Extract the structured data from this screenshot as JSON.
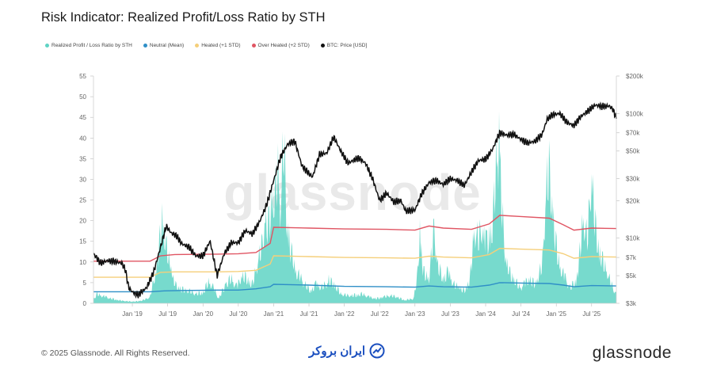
{
  "title": "Risk Indicator: Realized Profit/Loss Ratio by STH",
  "legend": [
    {
      "label": "Realized Profit / Loss Ratio by STH",
      "color": "#5fd3c4"
    },
    {
      "label": "Neutral (Mean)",
      "color": "#2f8fc7"
    },
    {
      "label": "Heated (+1 STD)",
      "color": "#f5cf7a"
    },
    {
      "label": "Over Heated (+2 STD)",
      "color": "#e05563"
    },
    {
      "label": "BTC: Price [USD]",
      "color": "#111111"
    }
  ],
  "watermark": "glassnode",
  "footer": {
    "copyright": "© 2025 Glassnode. All Rights Reserved.",
    "partner_brand": "ایران بروکر",
    "brand": "glassnode"
  },
  "chart_data": {
    "type": "line",
    "title": "Risk Indicator: Realized Profit/Loss Ratio by STH",
    "x_tick_labels": [
      "Jan '19",
      "Jul '19",
      "Jan '20",
      "Jul '20",
      "Jan '21",
      "Jul '21",
      "Jan '22",
      "Jul '22",
      "Jan '23",
      "Jul '23",
      "Jan '24",
      "Jul '24",
      "Jan '25",
      "Jul '25"
    ],
    "y_left": {
      "ticks": [
        0,
        5,
        10,
        15,
        20,
        25,
        30,
        35,
        40,
        45,
        50,
        55
      ],
      "range": [
        0,
        55
      ]
    },
    "y_right": {
      "ticks": [
        "$3k",
        "$5k",
        "$7k",
        "$10k",
        "$20k",
        "$30k",
        "$50k",
        "$70k",
        "$100k",
        "$200k"
      ],
      "values": [
        3000,
        5000,
        7000,
        10000,
        20000,
        30000,
        50000,
        70000,
        100000,
        200000
      ],
      "scale": "log",
      "range": [
        3000,
        200000
      ]
    },
    "x_range": [
      2018.45,
      2025.85
    ],
    "series": [
      {
        "name": "BTC: Price [USD]",
        "axis": "right",
        "points": [
          [
            2018.45,
            7500
          ],
          [
            2018.55,
            6300
          ],
          [
            2018.65,
            6600
          ],
          [
            2018.75,
            6500
          ],
          [
            2018.85,
            6300
          ],
          [
            2018.9,
            5600
          ],
          [
            2018.95,
            4000
          ],
          [
            2019.0,
            3700
          ],
          [
            2019.08,
            3500
          ],
          [
            2019.2,
            4000
          ],
          [
            2019.3,
            5300
          ],
          [
            2019.4,
            8500
          ],
          [
            2019.48,
            12500
          ],
          [
            2019.55,
            11000
          ],
          [
            2019.62,
            10500
          ],
          [
            2019.7,
            9000
          ],
          [
            2019.8,
            8500
          ],
          [
            2019.9,
            7200
          ],
          [
            2020.0,
            7200
          ],
          [
            2020.1,
            9500
          ],
          [
            2020.2,
            5000
          ],
          [
            2020.3,
            7500
          ],
          [
            2020.4,
            9200
          ],
          [
            2020.5,
            9200
          ],
          [
            2020.6,
            11500
          ],
          [
            2020.7,
            10800
          ],
          [
            2020.8,
            13500
          ],
          [
            2020.9,
            18500
          ],
          [
            2021.0,
            29000
          ],
          [
            2021.1,
            45000
          ],
          [
            2021.2,
            57000
          ],
          [
            2021.3,
            60000
          ],
          [
            2021.4,
            38000
          ],
          [
            2021.5,
            33000
          ],
          [
            2021.55,
            31000
          ],
          [
            2021.65,
            47000
          ],
          [
            2021.75,
            48000
          ],
          [
            2021.85,
            65000
          ],
          [
            2021.95,
            50000
          ],
          [
            2022.05,
            40000
          ],
          [
            2022.2,
            44000
          ],
          [
            2022.3,
            40000
          ],
          [
            2022.4,
            30000
          ],
          [
            2022.5,
            20000
          ],
          [
            2022.6,
            23000
          ],
          [
            2022.7,
            19500
          ],
          [
            2022.8,
            20000
          ],
          [
            2022.87,
            16500
          ],
          [
            2023.0,
            16800
          ],
          [
            2023.1,
            23000
          ],
          [
            2023.2,
            28000
          ],
          [
            2023.3,
            29000
          ],
          [
            2023.4,
            27000
          ],
          [
            2023.5,
            30000
          ],
          [
            2023.6,
            29000
          ],
          [
            2023.7,
            26500
          ],
          [
            2023.8,
            34000
          ],
          [
            2023.9,
            42000
          ],
          [
            2024.0,
            43000
          ],
          [
            2024.1,
            52000
          ],
          [
            2024.2,
            70000
          ],
          [
            2024.3,
            67000
          ],
          [
            2024.4,
            68000
          ],
          [
            2024.5,
            62000
          ],
          [
            2024.6,
            58000
          ],
          [
            2024.7,
            60000
          ],
          [
            2024.8,
            68000
          ],
          [
            2024.87,
            90000
          ],
          [
            2024.95,
            98000
          ],
          [
            2025.05,
            100000
          ],
          [
            2025.15,
            85000
          ],
          [
            2025.25,
            80000
          ],
          [
            2025.35,
            95000
          ],
          [
            2025.45,
            105000
          ],
          [
            2025.55,
            117000
          ],
          [
            2025.65,
            114000
          ],
          [
            2025.75,
            115000
          ],
          [
            2025.8,
            108000
          ],
          [
            2025.85,
            92000
          ]
        ]
      },
      {
        "name": "Over Heated (+2 STD)",
        "axis": "left",
        "points": [
          [
            2018.45,
            10.2
          ],
          [
            2019.25,
            10.2
          ],
          [
            2019.4,
            11.5
          ],
          [
            2019.6,
            11.8
          ],
          [
            2020.2,
            11.9
          ],
          [
            2020.5,
            12.0
          ],
          [
            2020.75,
            12.3
          ],
          [
            2020.95,
            14.5
          ],
          [
            2021.0,
            18.4
          ],
          [
            2021.5,
            18.2
          ],
          [
            2022.0,
            18.0
          ],
          [
            2022.6,
            17.9
          ],
          [
            2023.0,
            17.7
          ],
          [
            2023.2,
            18.7
          ],
          [
            2023.4,
            18.2
          ],
          [
            2023.8,
            17.9
          ],
          [
            2024.05,
            19.2
          ],
          [
            2024.2,
            21.3
          ],
          [
            2024.5,
            21.0
          ],
          [
            2024.9,
            20.6
          ],
          [
            2025.1,
            19.0
          ],
          [
            2025.25,
            17.7
          ],
          [
            2025.5,
            18.2
          ],
          [
            2025.85,
            18.1
          ]
        ]
      },
      {
        "name": "Heated (+1 STD)",
        "axis": "left",
        "points": [
          [
            2018.45,
            6.3
          ],
          [
            2019.25,
            6.3
          ],
          [
            2019.4,
            7.5
          ],
          [
            2019.6,
            7.6
          ],
          [
            2020.2,
            7.6
          ],
          [
            2020.5,
            7.7
          ],
          [
            2020.75,
            8.0
          ],
          [
            2020.95,
            9.5
          ],
          [
            2021.0,
            11.5
          ],
          [
            2021.5,
            11.3
          ],
          [
            2022.0,
            11.1
          ],
          [
            2022.6,
            11.0
          ],
          [
            2023.0,
            10.9
          ],
          [
            2023.2,
            11.4
          ],
          [
            2023.4,
            11.2
          ],
          [
            2023.8,
            11.0
          ],
          [
            2024.05,
            11.8
          ],
          [
            2024.2,
            13.3
          ],
          [
            2024.5,
            13.1
          ],
          [
            2024.9,
            12.9
          ],
          [
            2025.1,
            12.0
          ],
          [
            2025.25,
            10.9
          ],
          [
            2025.5,
            11.3
          ],
          [
            2025.85,
            11.2
          ]
        ]
      },
      {
        "name": "Neutral (Mean)",
        "axis": "left",
        "points": [
          [
            2018.45,
            2.8
          ],
          [
            2019.25,
            2.8
          ],
          [
            2019.45,
            3.0
          ],
          [
            2019.7,
            3.1
          ],
          [
            2020.2,
            3.2
          ],
          [
            2020.5,
            3.2
          ],
          [
            2020.75,
            3.5
          ],
          [
            2020.95,
            4.0
          ],
          [
            2021.0,
            4.6
          ],
          [
            2021.5,
            4.4
          ],
          [
            2022.0,
            4.1
          ],
          [
            2022.6,
            4.0
          ],
          [
            2023.0,
            3.9
          ],
          [
            2023.2,
            4.2
          ],
          [
            2023.4,
            4.0
          ],
          [
            2023.8,
            3.9
          ],
          [
            2024.05,
            4.4
          ],
          [
            2024.2,
            5.0
          ],
          [
            2024.5,
            4.9
          ],
          [
            2024.9,
            4.8
          ],
          [
            2025.1,
            4.4
          ],
          [
            2025.25,
            4.0
          ],
          [
            2025.5,
            4.3
          ],
          [
            2025.85,
            4.2
          ]
        ]
      },
      {
        "name": "Realized Profit / Loss Ratio by STH",
        "axis": "left",
        "type": "area",
        "spikes": [
          [
            2018.45,
            1.2,
            22
          ],
          [
            2018.5,
            3.0,
            16
          ],
          [
            2018.62,
            2.0,
            25
          ],
          [
            2018.8,
            1.0,
            21
          ],
          [
            2018.95,
            0.6,
            14
          ],
          [
            2019.05,
            0.6,
            12
          ],
          [
            2019.15,
            1.0,
            10
          ],
          [
            2019.25,
            2.0,
            8
          ],
          [
            2019.3,
            7.0,
            6
          ],
          [
            2019.36,
            13.0,
            5
          ],
          [
            2019.42,
            28.0,
            6
          ],
          [
            2019.48,
            18.0,
            7
          ],
          [
            2019.55,
            10.0,
            7
          ],
          [
            2019.6,
            6.0,
            8
          ],
          [
            2019.7,
            4.5,
            7
          ],
          [
            2019.8,
            4.0,
            9
          ],
          [
            2019.9,
            3.0,
            8
          ],
          [
            2020.0,
            3.5,
            9
          ],
          [
            2020.08,
            7.0,
            7
          ],
          [
            2020.15,
            5.0,
            8
          ],
          [
            2020.22,
            1.5,
            9
          ],
          [
            2020.32,
            6.0,
            7
          ],
          [
            2020.4,
            8.0,
            7
          ],
          [
            2020.48,
            5.0,
            8
          ],
          [
            2020.55,
            9.0,
            6
          ],
          [
            2020.62,
            8.0,
            6
          ],
          [
            2020.7,
            6.0,
            7
          ],
          [
            2020.77,
            13.0,
            5
          ],
          [
            2020.83,
            18.0,
            5
          ],
          [
            2020.88,
            26.0,
            4
          ],
          [
            2020.93,
            25.0,
            4
          ],
          [
            2020.98,
            35.0,
            4
          ],
          [
            2021.02,
            34.0,
            4
          ],
          [
            2021.06,
            42.0,
            3
          ],
          [
            2021.1,
            30.0,
            4
          ],
          [
            2021.14,
            54.0,
            3
          ],
          [
            2021.18,
            28.0,
            4
          ],
          [
            2021.22,
            20.0,
            4
          ],
          [
            2021.27,
            14.0,
            5
          ],
          [
            2021.32,
            10.0,
            5
          ],
          [
            2021.38,
            8.0,
            5
          ],
          [
            2021.45,
            6.0,
            6
          ],
          [
            2021.52,
            4.0,
            7
          ],
          [
            2021.6,
            6.0,
            6
          ],
          [
            2021.68,
            5.0,
            6
          ],
          [
            2021.78,
            7.0,
            6
          ],
          [
            2021.85,
            6.5,
            6
          ],
          [
            2021.95,
            3.0,
            8
          ],
          [
            2022.05,
            2.5,
            8
          ],
          [
            2022.15,
            2.5,
            8
          ],
          [
            2022.25,
            3.0,
            7
          ],
          [
            2022.35,
            2.0,
            8
          ],
          [
            2022.45,
            1.5,
            9
          ],
          [
            2022.55,
            2.0,
            8
          ],
          [
            2022.65,
            2.5,
            8
          ],
          [
            2022.75,
            2.0,
            8
          ],
          [
            2022.85,
            1.0,
            9
          ],
          [
            2022.98,
            1.5,
            8
          ],
          [
            2023.03,
            8.0,
            4
          ],
          [
            2023.07,
            22.0,
            3
          ],
          [
            2023.12,
            10.0,
            4
          ],
          [
            2023.2,
            8.0,
            5
          ],
          [
            2023.27,
            24.0,
            3
          ],
          [
            2023.32,
            12.0,
            4
          ],
          [
            2023.4,
            8.0,
            5
          ],
          [
            2023.47,
            10.0,
            4
          ],
          [
            2023.55,
            6.0,
            5
          ],
          [
            2023.62,
            5.0,
            6
          ],
          [
            2023.7,
            4.0,
            6
          ],
          [
            2023.78,
            8.0,
            5
          ],
          [
            2023.84,
            24.0,
            3
          ],
          [
            2023.9,
            20.0,
            3
          ],
          [
            2023.95,
            25.0,
            3
          ],
          [
            2024.0,
            18.0,
            3
          ],
          [
            2024.05,
            22.0,
            3
          ],
          [
            2024.1,
            25.0,
            3
          ],
          [
            2024.15,
            45.0,
            3
          ],
          [
            2024.19,
            50.0,
            3
          ],
          [
            2024.23,
            30.0,
            3
          ],
          [
            2024.28,
            15.0,
            4
          ],
          [
            2024.33,
            10.0,
            5
          ],
          [
            2024.4,
            8.0,
            5
          ],
          [
            2024.48,
            5.0,
            6
          ],
          [
            2024.55,
            6.0,
            6
          ],
          [
            2024.62,
            8.0,
            5
          ],
          [
            2024.7,
            6.0,
            5
          ],
          [
            2024.8,
            12.0,
            4
          ],
          [
            2024.86,
            38.0,
            3
          ],
          [
            2024.9,
            42.0,
            3
          ],
          [
            2024.95,
            30.0,
            3
          ],
          [
            2025.0,
            18.0,
            4
          ],
          [
            2025.05,
            12.0,
            4
          ],
          [
            2025.12,
            8.0,
            5
          ],
          [
            2025.2,
            5.0,
            6
          ],
          [
            2025.3,
            8.0,
            5
          ],
          [
            2025.38,
            28.0,
            3
          ],
          [
            2025.44,
            20.0,
            3
          ],
          [
            2025.5,
            42.0,
            3
          ],
          [
            2025.55,
            25.0,
            3
          ],
          [
            2025.6,
            18.0,
            4
          ],
          [
            2025.65,
            14.0,
            4
          ],
          [
            2025.72,
            10.0,
            5
          ],
          [
            2025.78,
            6.0,
            6
          ],
          [
            2025.84,
            3.0,
            8
          ]
        ]
      }
    ]
  }
}
